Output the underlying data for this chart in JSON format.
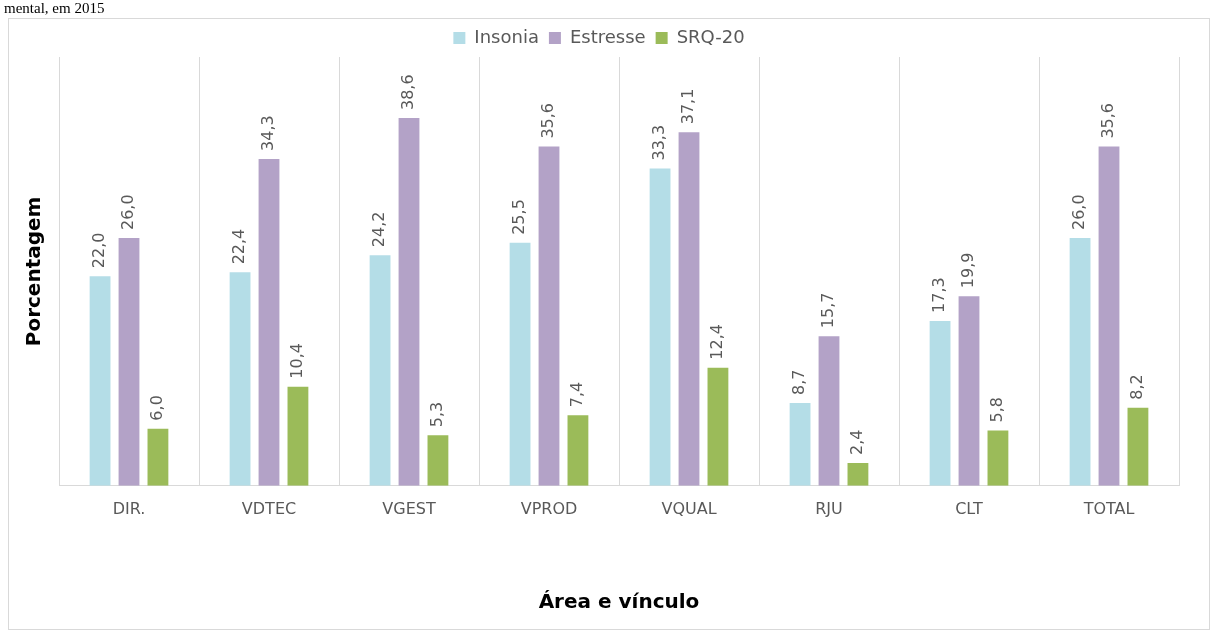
{
  "chart_data": {
    "type": "bar",
    "annotations": [
      "mental, em 2015"
    ],
    "xlabel": "Área e vínculo",
    "ylabel": "Porcentagem",
    "categories": [
      "DIR.",
      "VDTEC",
      "VGEST",
      "VPROD",
      "VQUAL",
      "RJU",
      "CLT",
      "TOTAL"
    ],
    "series": [
      {
        "name": "Insonia",
        "color": "#b4dde7",
        "values": [
          22.0,
          22.4,
          24.2,
          25.5,
          33.3,
          8.7,
          17.3,
          26.0
        ],
        "value_labels": [
          "22,0",
          "22,4",
          "24,2",
          "25,5",
          "33,3",
          "8,7",
          "17,3",
          "26,0"
        ]
      },
      {
        "name": "Estresse",
        "color": "#b3a2c7",
        "values": [
          26.0,
          34.3,
          38.6,
          35.6,
          37.1,
          15.7,
          19.9,
          35.6
        ],
        "value_labels": [
          "26,0",
          "34,3",
          "38,6",
          "35,6",
          "37,1",
          "15,7",
          "19,9",
          "35,6"
        ]
      },
      {
        "name": "SRQ-20",
        "color": "#9bbb59",
        "values": [
          6.0,
          10.4,
          5.3,
          7.4,
          12.4,
          2.4,
          5.8,
          8.2
        ],
        "value_labels": [
          "6,0",
          "10,4",
          "5,3",
          "7,4",
          "12,4",
          "2,4",
          "5,8",
          "8,2"
        ]
      }
    ],
    "legend": "top",
    "grid": "x",
    "tick_labels": "x"
  }
}
